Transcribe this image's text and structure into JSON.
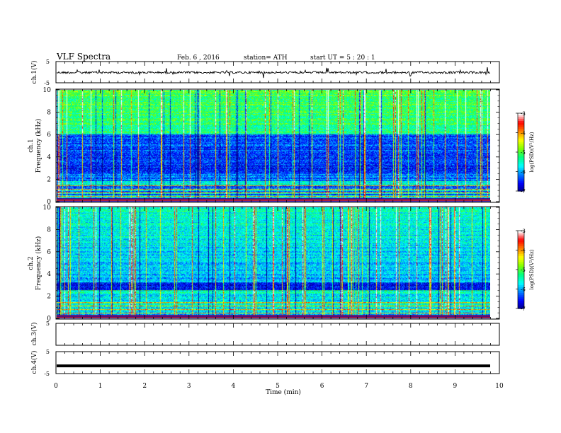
{
  "header": {
    "title": "VLF  Spectra",
    "date": "Feb. 6   , 2016",
    "station": "station= ATH",
    "start": "start  UT  =   5  : 20 : 1"
  },
  "chart_data": [
    {
      "type": "line",
      "panel": "ch1-waveform",
      "ylabel": "ch.1(V)",
      "ylim": [
        -5,
        5
      ],
      "yticks": [
        "5",
        "-5"
      ],
      "xlim": [
        0,
        10
      ]
    },
    {
      "type": "heatmap",
      "panel": "ch1-spectrogram",
      "ylabel_line1": "ch.1",
      "ylabel_line2": "Frequency  (kHz)",
      "ylim": [
        0,
        10
      ],
      "yticks": [
        "0",
        "2",
        "4",
        "6",
        "8",
        "10"
      ],
      "xlim": [
        0,
        9.8
      ],
      "colorbar": {
        "label": "log(PSD)(V²/Hz)",
        "ticks": [
          "-3",
          "-4",
          "-5",
          "-6",
          "-7"
        ],
        "range": [
          -7,
          -3
        ]
      }
    },
    {
      "type": "heatmap",
      "panel": "ch2-spectrogram",
      "ylabel_line1": "ch.2",
      "ylabel_line2": "Frequency  (kHz)",
      "ylim": [
        0,
        10
      ],
      "yticks": [
        "0",
        "2",
        "4",
        "6",
        "8",
        "10"
      ],
      "xlim": [
        0,
        9.8
      ],
      "colorbar": {
        "label": "log(PSD)(V²/Hz)",
        "ticks": [
          "-3",
          "-4",
          "-5",
          "-6",
          "-7"
        ],
        "range": [
          -7,
          -3
        ]
      }
    },
    {
      "type": "line",
      "panel": "ch3-waveform",
      "ylabel": "ch.3(V)",
      "ylim": [
        -5,
        5
      ],
      "yticks": [
        "5"
      ],
      "xlim": [
        0,
        10
      ]
    },
    {
      "type": "line",
      "panel": "ch4-waveform",
      "ylabel": "ch.4(V)",
      "ylim": [
        -5,
        5
      ],
      "yticks": [
        "5",
        "-5"
      ],
      "xlim": [
        0,
        10
      ],
      "level": -1.5
    }
  ],
  "xaxis": {
    "label": "Time  (min)",
    "ticks": [
      "0",
      "1",
      "2",
      "3",
      "4",
      "5",
      "6",
      "7",
      "8",
      "9",
      "10"
    ],
    "range": [
      0,
      10
    ]
  },
  "colormap": [
    "#000080",
    "#0000ff",
    "#0080ff",
    "#00ffff",
    "#00ff80",
    "#80ff00",
    "#ffff00",
    "#ff8000",
    "#ff0000",
    "#ffffff"
  ]
}
